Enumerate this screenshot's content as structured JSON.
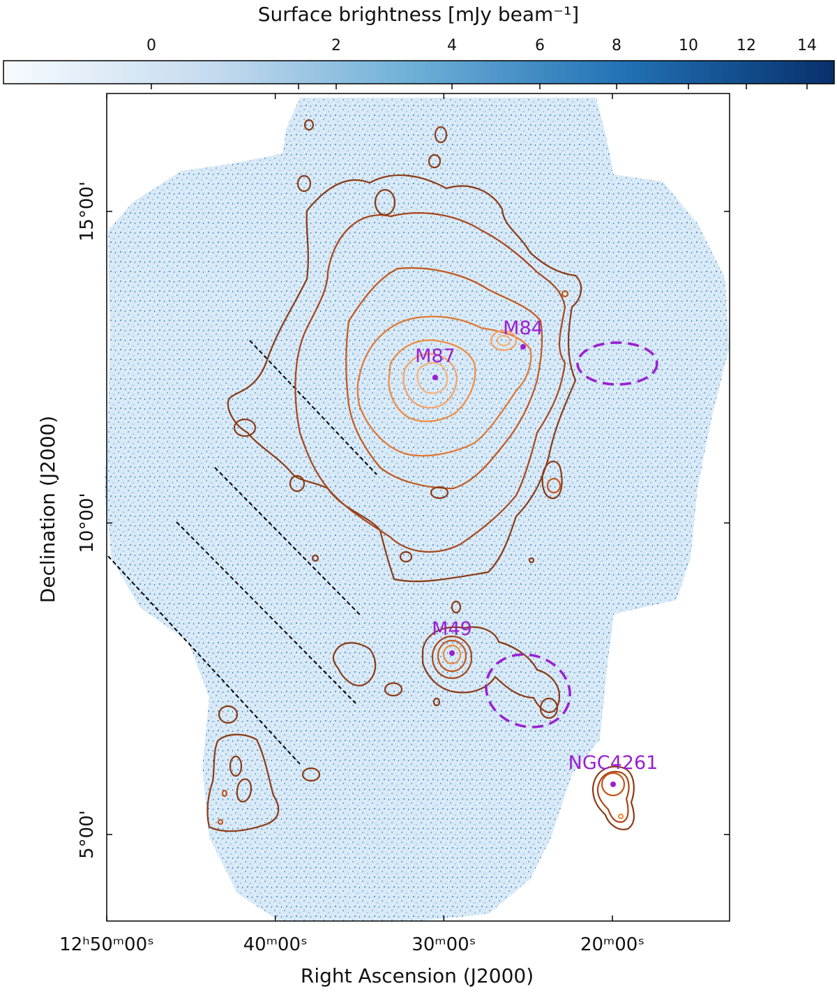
{
  "chart_data": {
    "type": "contour_map",
    "colorbar": {
      "label": "Surface brightness [mJy beam⁻¹]",
      "ticks": [
        "0",
        "2",
        "4",
        "6",
        "8",
        "10",
        "12",
        "14"
      ],
      "colormap": [
        "#f7fbff",
        "#c6dbef",
        "#6baed6",
        "#2171b5",
        "#08306b"
      ]
    },
    "xlabel": "Right Ascension (J2000)",
    "ylabel": "Declination (J2000)",
    "x_ticks": [
      {
        "label": "12ʰ50ᵐ00ˢ",
        "ra_sec": 45000
      },
      {
        "label": "40ᵐ00ˢ",
        "ra_sec": 44400
      },
      {
        "label": "30ᵐ00ˢ",
        "ra_sec": 43800
      },
      {
        "label": "20ᵐ00ˢ",
        "ra_sec": 43200
      }
    ],
    "y_ticks": [
      {
        "label": "15°00'",
        "dec_deg": 15
      },
      {
        "label": "10°00'",
        "dec_deg": 10
      },
      {
        "label": "5°00'",
        "dec_deg": 5
      }
    ],
    "sources": [
      {
        "name": "M87",
        "ra_sec": 43848,
        "dec_deg": 12.4
      },
      {
        "name": "M84",
        "ra_sec": 43509,
        "dec_deg": 12.9
      },
      {
        "name": "M49",
        "ra_sec": 43787,
        "dec_deg": 8.0
      },
      {
        "name": "NGC4261",
        "ra_sec": 43117,
        "dec_deg": 5.8
      }
    ],
    "regions": [
      {
        "shape": "ellipse",
        "ra_sec": 43135,
        "dec_deg": 12.5,
        "style": "dashed"
      },
      {
        "shape": "ellipse",
        "ra_sec": 43475,
        "dec_deg": 7.4,
        "style": "dashed"
      }
    ],
    "colors": {
      "contour_dark": "#8b3a14",
      "contour_mid": "#c2571a",
      "contour_light": "#f08a3c",
      "contour_pale": "#f6b27a",
      "source_label": "#9a1fd0",
      "dashed_line": "#000000"
    }
  }
}
